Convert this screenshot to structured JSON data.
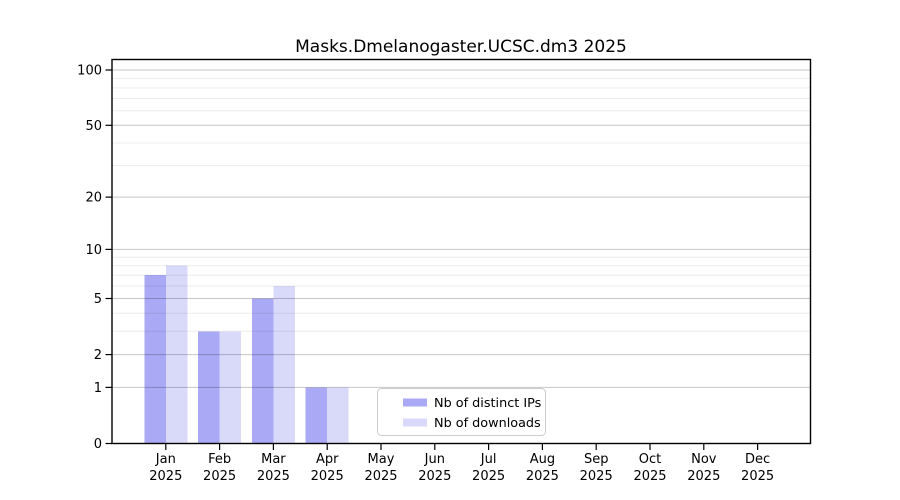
{
  "chart_data": {
    "type": "bar",
    "title": "Masks.Dmelanogaster.UCSC.dm3 2025",
    "categories": [
      "Jan",
      "Feb",
      "Mar",
      "Apr",
      "May",
      "Jun",
      "Jul",
      "Aug",
      "Sep",
      "Oct",
      "Nov",
      "Dec"
    ],
    "year_label": "2025",
    "series": [
      {
        "name": "Nb of distinct IPs",
        "color": "#a9a9f5",
        "values": [
          7,
          3,
          5,
          1,
          0,
          0,
          0,
          0,
          0,
          0,
          0,
          0
        ]
      },
      {
        "name": "Nb of downloads",
        "color": "#d9d9fa",
        "values": [
          8,
          3,
          6,
          1,
          0,
          0,
          0,
          0,
          0,
          0,
          0,
          0
        ]
      }
    ],
    "yscale": "log1p",
    "ylim": [
      0,
      114
    ],
    "y_major_ticks": [
      0,
      1,
      2,
      5,
      10,
      20,
      50,
      100
    ],
    "y_minor_ticks": [
      3,
      4,
      6,
      7,
      8,
      9,
      30,
      40,
      60,
      70,
      80,
      90
    ],
    "grid": true,
    "legend_position": "lower center",
    "legend_labels": [
      "Nb of distinct IPs",
      "Nb of downloads"
    ]
  }
}
